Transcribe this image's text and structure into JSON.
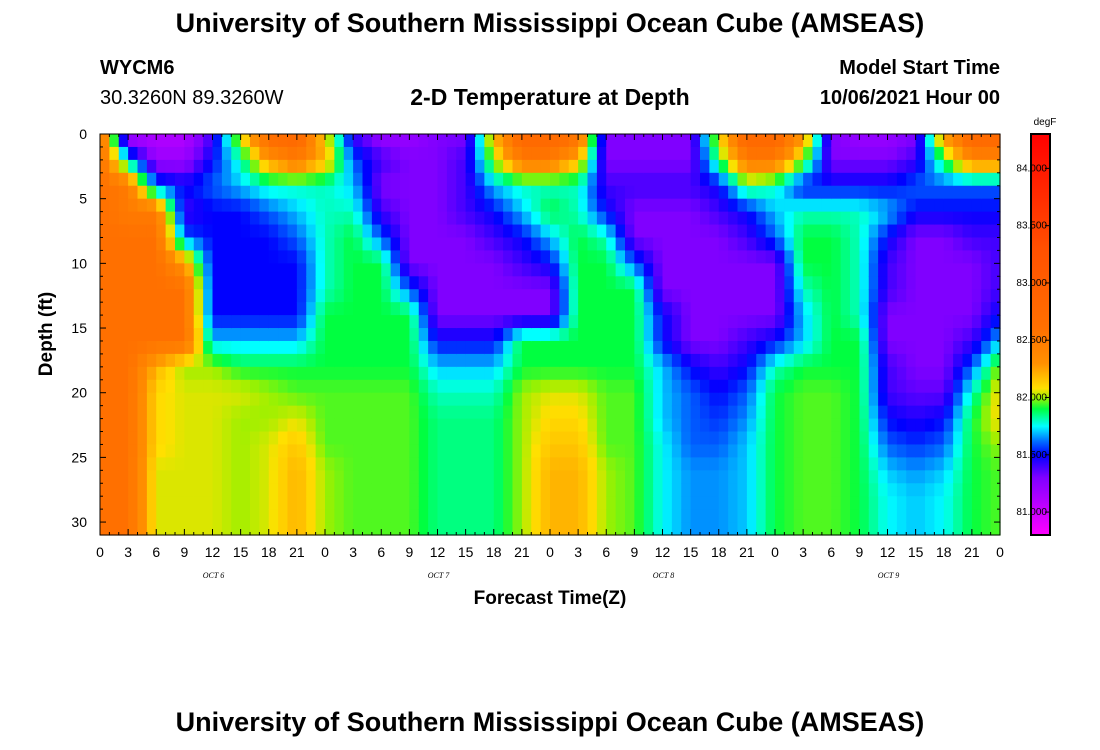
{
  "header": {
    "title_top": "University of Southern Mississippi Ocean Cube (AMSEAS)",
    "title_bottom": "University of Southern Mississippi Ocean Cube (AMSEAS)",
    "station_id": "WYCM6",
    "station_coords": "30.3260N  89.3260W",
    "subtitle": "2-D Temperature at Depth",
    "model_start_label": "Model Start Time",
    "model_start_value": "10/06/2021 Hour 00"
  },
  "chart_data": {
    "type": "heatmap",
    "title": "2-D Temperature at Depth",
    "xlabel": "Forecast Time(Z)",
    "ylabel": "Depth (ft)",
    "x_tick_labels": [
      "0",
      "3",
      "6",
      "9",
      "12",
      "15",
      "18",
      "21",
      "0",
      "3",
      "6",
      "9",
      "12",
      "15",
      "18",
      "21",
      "0",
      "3",
      "6",
      "9",
      "12",
      "15",
      "18",
      "21",
      "0",
      "3",
      "6",
      "9",
      "12",
      "15",
      "18",
      "21",
      "0"
    ],
    "x_range_hours": [
      0,
      96
    ],
    "date_labels": [
      {
        "label": "OCT 6",
        "hour": 12
      },
      {
        "label": "OCT 7",
        "hour": 36
      },
      {
        "label": "OCT 8",
        "hour": 60
      },
      {
        "label": "OCT 9",
        "hour": 84
      }
    ],
    "y_ticks": [
      0,
      5,
      10,
      15,
      20,
      25,
      30
    ],
    "y_tick_labels": [
      "0",
      "5",
      "10",
      "15",
      "20",
      "25",
      "30"
    ],
    "y_range_ft": [
      0,
      31
    ],
    "y_inverted": true,
    "colorbar": {
      "unit": "degF",
      "range": [
        80.8,
        84.3
      ],
      "tick_values": [
        81.0,
        81.5,
        82.0,
        82.5,
        83.0,
        83.5,
        84.0
      ],
      "tick_labels": [
        "81.000",
        "81.500",
        "82.000",
        "82.500",
        "83.000",
        "83.500",
        "84.000"
      ],
      "colormap": [
        {
          "v": 80.8,
          "c": "#ff00ff"
        },
        {
          "v": 81.05,
          "c": "#c000ff"
        },
        {
          "v": 81.3,
          "c": "#8000ff"
        },
        {
          "v": 81.5,
          "c": "#0000ff"
        },
        {
          "v": 81.62,
          "c": "#0070ff"
        },
        {
          "v": 81.75,
          "c": "#00ffff"
        },
        {
          "v": 81.9,
          "c": "#00ff40"
        },
        {
          "v": 82.0,
          "c": "#a0f000"
        },
        {
          "v": 82.08,
          "c": "#ffe000"
        },
        {
          "v": 82.3,
          "c": "#ff9000"
        },
        {
          "v": 82.6,
          "c": "#ff7000"
        },
        {
          "v": 83.3,
          "c": "#ff5000"
        },
        {
          "v": 84.3,
          "c": "#ff0000"
        }
      ]
    },
    "temperature_degF": {
      "hours": [
        0,
        3,
        6,
        9,
        12,
        15,
        18,
        21,
        24,
        27,
        30,
        33,
        36,
        39,
        42,
        45,
        48,
        51,
        54,
        57,
        60,
        63,
        66,
        69,
        72,
        75,
        78,
        81,
        84,
        87,
        90,
        93,
        96
      ],
      "depths_ft": [
        0,
        2,
        4,
        6,
        8,
        10,
        12,
        14,
        16,
        18,
        20,
        22,
        24,
        26,
        28,
        30,
        31
      ],
      "rows": [
        [
          82.6,
          81.1,
          81.1,
          81.1,
          81.4,
          82.1,
          82.7,
          82.8,
          82.1,
          81.4,
          81.2,
          81.2,
          81.3,
          81.3,
          82.2,
          82.8,
          82.8,
          82.6,
          81.3,
          81.3,
          81.3,
          81.3,
          82.1,
          82.8,
          82.8,
          82.3,
          81.3,
          81.2,
          81.2,
          81.3,
          82.3,
          82.8,
          82.8
        ],
        [
          82.6,
          81.7,
          81.2,
          81.2,
          81.5,
          81.8,
          82.3,
          82.5,
          82.2,
          81.6,
          81.4,
          81.3,
          81.3,
          81.4,
          82.0,
          82.5,
          82.5,
          82.2,
          81.3,
          81.3,
          81.3,
          81.3,
          81.9,
          82.5,
          82.5,
          82.0,
          81.3,
          81.3,
          81.3,
          81.4,
          81.9,
          82.4,
          82.4
        ],
        [
          82.6,
          82.5,
          81.6,
          81.5,
          81.6,
          81.7,
          81.8,
          81.8,
          81.8,
          81.7,
          81.3,
          81.3,
          81.3,
          81.4,
          81.7,
          81.8,
          81.8,
          81.8,
          81.4,
          81.4,
          81.4,
          81.4,
          81.5,
          81.9,
          81.8,
          81.5,
          81.5,
          81.5,
          81.5,
          81.6,
          81.6,
          81.6,
          81.6
        ],
        [
          82.6,
          82.5,
          82.5,
          81.4,
          81.5,
          81.5,
          81.6,
          81.7,
          81.8,
          81.8,
          81.4,
          81.3,
          81.3,
          81.4,
          81.5,
          81.7,
          81.9,
          81.8,
          81.5,
          81.3,
          81.3,
          81.3,
          81.4,
          81.5,
          81.7,
          81.8,
          81.8,
          81.8,
          81.7,
          81.5,
          81.5,
          81.5,
          81.5
        ],
        [
          82.6,
          82.6,
          82.6,
          81.6,
          81.5,
          81.5,
          81.5,
          81.6,
          81.8,
          81.9,
          81.6,
          81.3,
          81.3,
          81.3,
          81.4,
          81.5,
          81.7,
          81.9,
          81.8,
          81.3,
          81.3,
          81.3,
          81.3,
          81.4,
          81.6,
          81.9,
          81.9,
          81.8,
          81.5,
          81.3,
          81.3,
          81.4,
          81.4
        ],
        [
          82.6,
          82.6,
          82.6,
          82.3,
          81.5,
          81.5,
          81.5,
          81.5,
          81.8,
          81.9,
          81.9,
          81.3,
          81.3,
          81.3,
          81.3,
          81.4,
          81.5,
          81.9,
          81.9,
          81.6,
          81.3,
          81.3,
          81.3,
          81.3,
          81.3,
          81.9,
          81.9,
          81.8,
          81.4,
          81.3,
          81.3,
          81.3,
          81.4
        ],
        [
          82.6,
          82.6,
          82.6,
          82.6,
          81.5,
          81.5,
          81.5,
          81.5,
          81.8,
          81.9,
          81.9,
          81.6,
          81.3,
          81.3,
          81.3,
          81.3,
          81.3,
          81.9,
          81.9,
          81.9,
          81.3,
          81.3,
          81.3,
          81.3,
          81.3,
          81.8,
          81.9,
          81.8,
          81.4,
          81.3,
          81.3,
          81.3,
          81.4
        ],
        [
          82.6,
          82.6,
          82.6,
          82.6,
          81.5,
          81.5,
          81.5,
          81.5,
          81.9,
          81.9,
          81.9,
          81.9,
          81.3,
          81.3,
          81.3,
          81.3,
          81.3,
          81.9,
          81.9,
          81.9,
          81.5,
          81.3,
          81.3,
          81.3,
          81.3,
          81.7,
          81.9,
          81.8,
          81.3,
          81.3,
          81.3,
          81.3,
          81.5
        ],
        [
          82.6,
          82.6,
          82.6,
          82.6,
          81.7,
          81.7,
          81.7,
          81.7,
          81.9,
          81.9,
          81.9,
          81.9,
          81.5,
          81.5,
          81.5,
          81.9,
          81.9,
          81.9,
          81.9,
          81.9,
          81.5,
          81.3,
          81.3,
          81.4,
          81.5,
          81.7,
          81.9,
          81.9,
          81.3,
          81.3,
          81.3,
          81.4,
          81.7
        ],
        [
          82.6,
          82.6,
          82.2,
          82.0,
          82.0,
          81.9,
          81.9,
          81.9,
          81.9,
          81.9,
          81.9,
          81.9,
          81.7,
          81.7,
          81.7,
          81.9,
          81.9,
          81.9,
          81.9,
          81.9,
          81.7,
          81.5,
          81.4,
          81.5,
          81.8,
          81.9,
          81.9,
          81.9,
          81.4,
          81.3,
          81.3,
          81.6,
          82.0
        ],
        [
          82.6,
          82.6,
          82.1,
          82.05,
          82.05,
          82.05,
          82.0,
          81.95,
          81.95,
          81.95,
          81.95,
          81.95,
          81.8,
          81.8,
          81.8,
          82.0,
          82.05,
          82.05,
          81.95,
          81.95,
          81.7,
          81.6,
          81.5,
          81.6,
          81.9,
          81.95,
          81.95,
          81.9,
          81.4,
          81.35,
          81.35,
          81.8,
          82.1
        ],
        [
          82.6,
          82.6,
          82.1,
          82.05,
          82.05,
          82.0,
          82.0,
          82.05,
          81.95,
          81.95,
          81.95,
          81.95,
          81.85,
          81.85,
          81.85,
          82.0,
          82.1,
          82.1,
          81.95,
          81.95,
          81.7,
          81.6,
          81.55,
          81.65,
          81.9,
          81.95,
          81.95,
          81.9,
          81.5,
          81.45,
          81.5,
          81.9,
          82.1
        ],
        [
          82.6,
          82.6,
          82.1,
          82.05,
          82.05,
          82.0,
          82.05,
          82.15,
          81.95,
          81.95,
          81.95,
          81.95,
          81.85,
          81.85,
          81.85,
          82.0,
          82.15,
          82.15,
          81.95,
          81.95,
          81.75,
          81.6,
          81.6,
          81.7,
          81.9,
          81.95,
          81.95,
          81.9,
          81.6,
          81.55,
          81.6,
          81.9,
          82.0
        ],
        [
          82.6,
          82.6,
          82.05,
          82.05,
          82.05,
          82.0,
          82.05,
          82.2,
          82.0,
          81.95,
          81.95,
          81.95,
          81.85,
          81.85,
          81.85,
          82.0,
          82.2,
          82.2,
          82.0,
          81.95,
          81.75,
          81.65,
          81.65,
          81.7,
          81.9,
          81.95,
          81.95,
          81.9,
          81.7,
          81.65,
          81.7,
          81.9,
          81.95
        ],
        [
          82.6,
          82.6,
          82.05,
          82.05,
          82.05,
          82.0,
          82.05,
          82.2,
          82.0,
          81.95,
          81.95,
          81.95,
          81.85,
          81.85,
          81.85,
          82.0,
          82.2,
          82.2,
          82.0,
          81.95,
          81.75,
          81.65,
          81.65,
          81.7,
          81.9,
          81.95,
          81.95,
          81.9,
          81.75,
          81.7,
          81.75,
          81.9,
          81.95
        ],
        [
          82.6,
          82.6,
          82.05,
          82.05,
          82.05,
          82.0,
          82.05,
          82.2,
          82.0,
          81.95,
          81.95,
          81.95,
          81.85,
          81.85,
          81.85,
          82.0,
          82.2,
          82.2,
          82.0,
          81.95,
          81.75,
          81.65,
          81.65,
          81.7,
          81.9,
          81.95,
          81.95,
          81.9,
          81.75,
          81.7,
          81.75,
          81.9,
          81.95
        ],
        [
          82.6,
          82.6,
          82.05,
          82.05,
          82.05,
          82.0,
          82.05,
          82.2,
          82.0,
          81.95,
          81.95,
          81.95,
          81.85,
          81.85,
          81.85,
          82.0,
          82.2,
          82.2,
          82.0,
          81.95,
          81.75,
          81.65,
          81.65,
          81.7,
          81.9,
          81.95,
          81.95,
          81.9,
          81.75,
          81.7,
          81.75,
          81.9,
          81.95
        ]
      ]
    }
  }
}
